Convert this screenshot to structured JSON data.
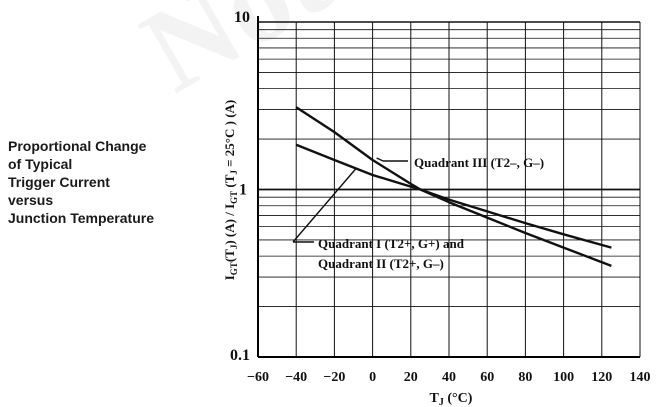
{
  "caption": {
    "line1": "Proportional Change",
    "line2": "of Typical",
    "line3": "Trigger Current",
    "line4": "versus",
    "line5": "Junction Temperature"
  },
  "chart_data": {
    "type": "line",
    "log_y": true,
    "xlabel": "T_J (°C)",
    "ylabel": "I_GT(T_J) (A) / I_GT(T_J = 25°C) (A)",
    "xlim": [
      -60,
      140
    ],
    "ylim": [
      0.1,
      10
    ],
    "x_ticks": [
      "-60",
      "-40",
      "-20",
      "0",
      "20",
      "40",
      "60",
      "80",
      "100",
      "120",
      "140"
    ],
    "y_ticks": [
      "0.1",
      "1",
      "10"
    ],
    "grid": true,
    "series": [
      {
        "name": "Quadrant III (T2–, G–)",
        "x": [
          -40,
          -20,
          0,
          20,
          25,
          40,
          60,
          80,
          100,
          125
        ],
        "y": [
          3.1,
          2.2,
          1.5,
          1.08,
          1.0,
          0.87,
          0.74,
          0.63,
          0.54,
          0.45
        ]
      },
      {
        "name": "Quadrant I (T2+, G+) and Quadrant II (T2+, G–)",
        "x": [
          -40,
          -20,
          0,
          20,
          25,
          40,
          60,
          80,
          100,
          125
        ],
        "y": [
          1.85,
          1.5,
          1.22,
          1.04,
          1.0,
          0.84,
          0.68,
          0.55,
          0.45,
          0.35
        ]
      }
    ],
    "annotations": [
      "Quadrant III (T2–, G–)",
      "Quadrant I (T2+, G+) and",
      "Quadrant II (T2+, G–)"
    ],
    "watermark": "Not"
  }
}
